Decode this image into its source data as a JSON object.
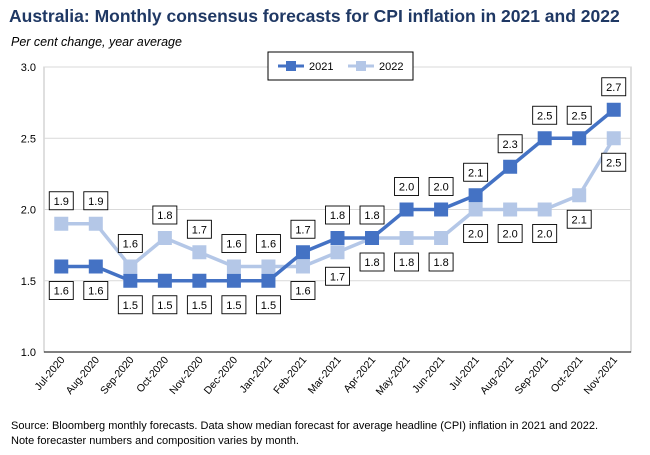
{
  "header": {
    "title": "Australia: Monthly consensus forecasts for CPI inflation in 2021 and 2022",
    "subtitle": "Per cent change, year average"
  },
  "footer": {
    "source_line1": "Source: Bloomberg monthly forecasts.  Data show median forecast for average headline (CPI) inflation in 2021 and 2022.",
    "source_line2": "Note forecaster numbers and composition varies by month."
  },
  "colors": {
    "series_2021": "#4472c4",
    "series_2022": "#b4c7e7",
    "title": "#1f3864",
    "grid": "#d9d9d9"
  },
  "chart_data": {
    "type": "line",
    "title": "Australia: Monthly consensus forecasts for CPI inflation in 2021 and 2022",
    "ylabel": "Per cent change, year average",
    "xlabel": "",
    "ylim": [
      1.0,
      3.0
    ],
    "yticks": [
      "1.0",
      "1.5",
      "2.0",
      "2.5",
      "3.0"
    ],
    "grid": true,
    "legend": "top-center",
    "categories": [
      "Jul-2020",
      "Aug-2020",
      "Sep-2020",
      "Oct-2020",
      "Nov-2020",
      "Dec-2020",
      "Jan-2021",
      "Feb-2021",
      "Mar-2021",
      "Apr-2021",
      "May-2021",
      "Jun-2021",
      "Jul-2021",
      "Aug-2021",
      "Sep-2021",
      "Oct-2021",
      "Nov-2021"
    ],
    "series": [
      {
        "name": "2021",
        "values": [
          1.6,
          1.6,
          1.5,
          1.5,
          1.5,
          1.5,
          1.5,
          1.7,
          1.8,
          1.8,
          2.0,
          2.0,
          2.1,
          2.3,
          2.5,
          2.5,
          2.7
        ],
        "labels": [
          "1.6",
          "1.6",
          "1.5",
          "1.5",
          "1.5",
          "1.5",
          "1.5",
          "1.7",
          "1.8",
          "1.8",
          "2.0",
          "2.0",
          "2.1",
          "2.3",
          "2.5",
          "2.5",
          "2.7"
        ]
      },
      {
        "name": "2022",
        "values": [
          1.9,
          1.9,
          1.6,
          1.8,
          1.7,
          1.6,
          1.6,
          1.6,
          1.7,
          1.8,
          1.8,
          1.8,
          2.0,
          2.0,
          2.0,
          2.1,
          2.5
        ],
        "labels": [
          "1.9",
          "1.9",
          "1.6",
          "1.8",
          "1.7",
          "1.6",
          "1.6",
          "1.6",
          "1.7",
          "1.8",
          "1.8",
          "1.8",
          "2.0",
          "2.0",
          "2.0",
          "2.1",
          "2.5"
        ]
      }
    ]
  }
}
